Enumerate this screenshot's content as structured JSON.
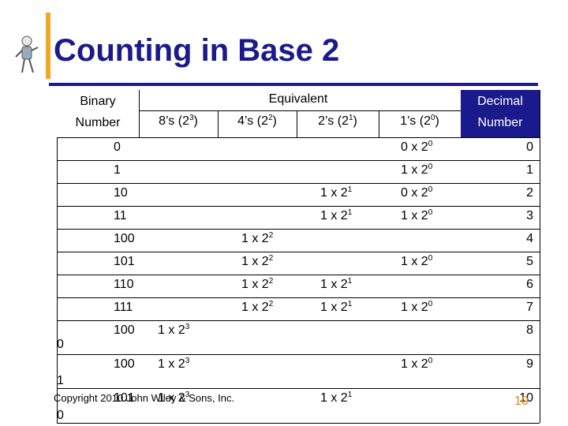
{
  "title": "Counting in Base 2",
  "header": {
    "binary_1": "Binary",
    "binary_2": "Number",
    "equivalent": "Equivalent",
    "decimal_1": "Decimal",
    "decimal_2": "Number",
    "col8": "8’s (2",
    "col8_exp": "3",
    "col4": "4’s (2",
    "col4_exp": "2",
    "col2": "2’s (2",
    "col2_exp": "1",
    "col1": "1’s (2",
    "col1_exp": "0",
    "close": ")"
  },
  "rows": [
    {
      "bin": "0",
      "c1": "0 x 2",
      "c1e": "0",
      "dec": "0"
    },
    {
      "bin": "1",
      "c1": "1 x 2",
      "c1e": "0",
      "dec": "1"
    },
    {
      "bin": "10",
      "c2": "1 x 2",
      "c2e": "1",
      "c1": "0 x 2",
      "c1e": "0",
      "dec": "2"
    },
    {
      "bin": "11",
      "c2": "1 x 2",
      "c2e": "1",
      "c1": "1 x 2",
      "c1e": "0",
      "dec": "3"
    },
    {
      "bin": "100",
      "c4": "1 x 2",
      "c4e": "2",
      "dec": "4"
    },
    {
      "bin": "101",
      "c4": "1 x 2",
      "c4e": "2",
      "c1": "1 x 2",
      "c1e": "0",
      "dec": "5"
    },
    {
      "bin": "110",
      "c4": "1 x 2",
      "c4e": "2",
      "c2": "1 x 2",
      "c2e": "1",
      "dec": "6"
    },
    {
      "bin": "111",
      "c4": "1 x 2",
      "c4e": "2",
      "c2": "1 x 2",
      "c2e": "1",
      "c1": "1 x 2",
      "c1e": "0",
      "dec": "7"
    },
    {
      "bin": "100",
      "c8": "1 x 2",
      "c8e": "3",
      "dec": "8"
    },
    {
      "bin": "100",
      "c8": "1 x 2",
      "c8e": "3",
      "c1": "1 x 2",
      "c1e": "0",
      "dec": "9"
    },
    {
      "bin": "101",
      "c8": "1 x 2",
      "c8e": "3",
      "c2": "1 x 2",
      "c2e": "1",
      "dec": "10"
    }
  ],
  "overflow_digits": [
    "0",
    "1",
    "0"
  ],
  "footer": "Copyright 2010 John Wiley & Sons, Inc.",
  "page_number": "10"
}
